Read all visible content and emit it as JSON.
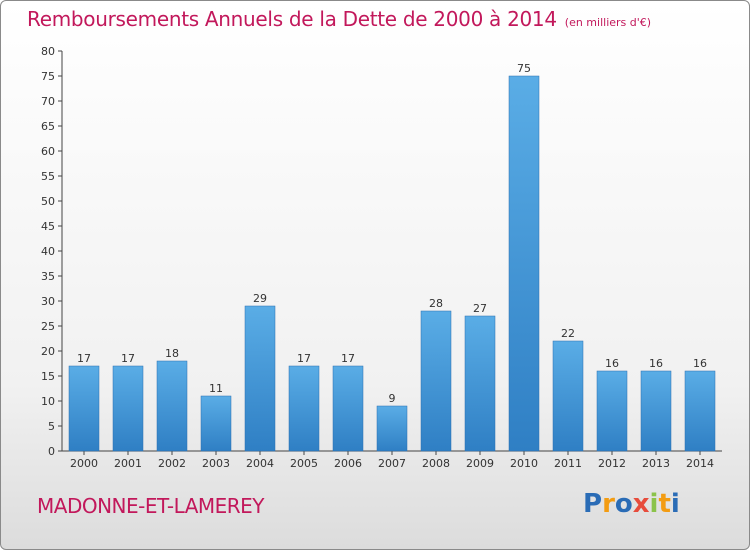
{
  "header": {
    "title": "Remboursements Annuels de la Dette de 2000 à 2014",
    "unit": "(en milliers d'€)"
  },
  "footer": {
    "town": "MADONNE-ET-LAMEREY",
    "brand_letters": [
      "P",
      "r",
      "o",
      "x",
      "i",
      "t",
      "i"
    ],
    "brand_colors": [
      "#2a6cb6",
      "#f39c12",
      "#2a6cb6",
      "#e74c3c",
      "#8bc34a",
      "#f39c12",
      "#2a6cb6"
    ]
  },
  "colors": {
    "accent": "#c2185b",
    "bar_light": "#5aade6",
    "bar_dark": "#2f7fc4"
  },
  "chart_data": {
    "type": "bar",
    "title": "Remboursements Annuels de la Dette de 2000 à 2014",
    "xlabel": "",
    "ylabel": "",
    "categories": [
      "2000",
      "2001",
      "2002",
      "2003",
      "2004",
      "2005",
      "2006",
      "2007",
      "2008",
      "2009",
      "2010",
      "2011",
      "2012",
      "2013",
      "2014"
    ],
    "values": [
      17,
      17,
      18,
      11,
      29,
      17,
      17,
      9,
      28,
      27,
      75,
      22,
      16,
      16,
      16
    ],
    "ylim": [
      0,
      80
    ],
    "yticks": [
      0,
      5,
      10,
      15,
      20,
      25,
      30,
      35,
      40,
      45,
      50,
      55,
      60,
      65,
      70,
      75,
      80
    ],
    "grid": false,
    "data_labels": true
  }
}
